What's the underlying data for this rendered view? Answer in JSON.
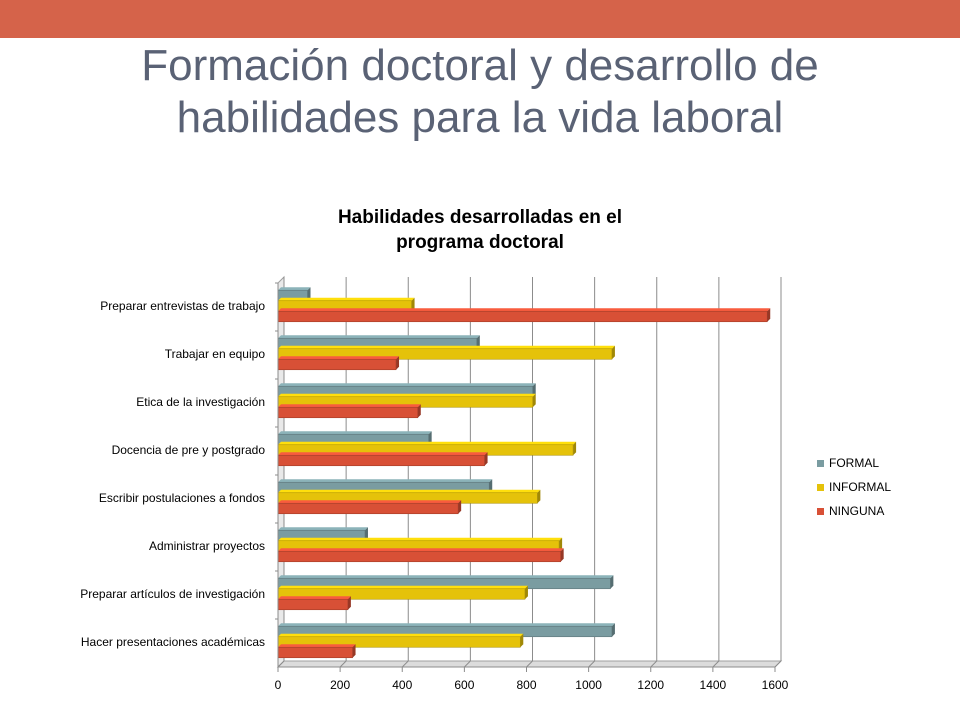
{
  "slide": {
    "title_line1": "Formación doctoral y desarrollo de",
    "title_line2": "habilidades para la vida laboral",
    "accent_color": "#d5634a",
    "title_color": "#5a6275"
  },
  "chart_data": {
    "type": "bar",
    "orientation": "horizontal",
    "title_line1": "Habilidades desarrolladas en el",
    "title_line2": "programa doctoral",
    "categories": [
      "Preparar entrevistas de trabajo",
      "Trabajar en equipo",
      "Etica de la investigación",
      "Docencia de pre y postgrado",
      "Escribir postulaciones a fondos",
      "Administrar proyectos",
      "Preparar artículos de investigación",
      "Hacer presentaciones académicas"
    ],
    "series": [
      {
        "name": "FORMAL",
        "color": "#7a9ca1",
        "values": [
          95,
          640,
          820,
          485,
          680,
          280,
          1070,
          1075
        ]
      },
      {
        "name": "INFORMAL",
        "color": "#e5c20a",
        "values": [
          430,
          1075,
          820,
          950,
          835,
          905,
          795,
          780
        ]
      },
      {
        "name": "NINGUNA",
        "color": "#d85036",
        "values": [
          1575,
          380,
          450,
          665,
          580,
          910,
          225,
          240
        ]
      }
    ],
    "xlim": [
      0,
      1600
    ],
    "xticks": [
      "0",
      "200",
      "400",
      "600",
      "800",
      "1000",
      "1200",
      "1400",
      "1600"
    ],
    "grid": true,
    "legend_position": "right"
  }
}
